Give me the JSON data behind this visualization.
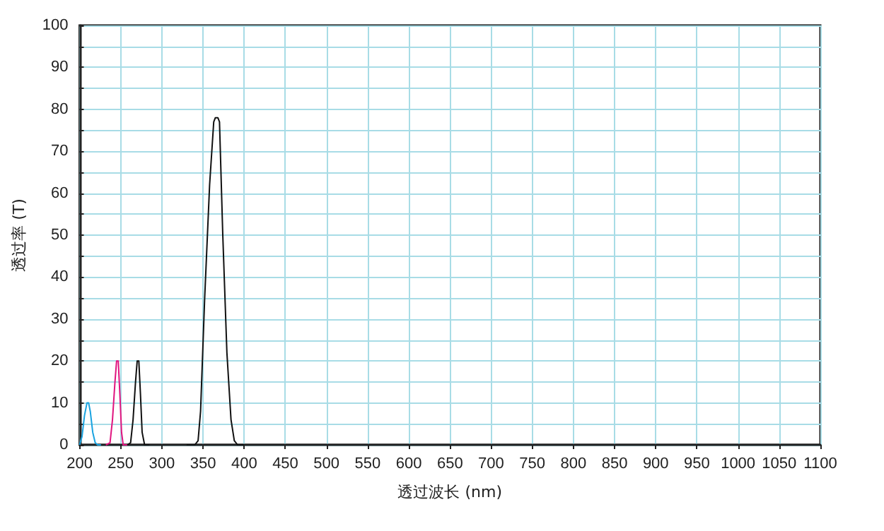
{
  "chart_data": {
    "type": "line",
    "xlabel": "透过波长 (nm)",
    "ylabel": "透过率 (T)",
    "xlim": [
      200,
      1100
    ],
    "xticks": [
      200,
      250,
      300,
      350,
      400,
      450,
      500,
      550,
      600,
      650,
      700,
      750,
      800,
      850,
      900,
      950,
      1000,
      1050,
      1100
    ],
    "ylim": [
      0,
      100
    ],
    "yticks": [
      0,
      {
        "value": 5,
        "label": null
      },
      10,
      {
        "value": 15,
        "label": null
      },
      20,
      {
        "value": 25,
        "label": null
      },
      30,
      {
        "value": 35,
        "label": null
      },
      40,
      {
        "value": 45,
        "label": null
      },
      50,
      {
        "value": 55,
        "label": null
      },
      60,
      {
        "value": 65,
        "label": null
      },
      70,
      {
        "value": 75,
        "label": null
      },
      80,
      {
        "value": 85,
        "label": null
      },
      90,
      {
        "value": 95,
        "label": null
      },
      100
    ],
    "grid": true,
    "marker": "none",
    "line_style": "solid",
    "series": [
      {
        "color": "#1aa3e0",
        "x": [
          200,
          203,
          206,
          209,
          211,
          213,
          216,
          219,
          222,
          226
        ],
        "values": [
          0,
          2,
          7,
          10,
          10,
          8,
          3,
          0.5,
          0,
          0
        ]
      },
      {
        "color": "#e0157f",
        "x": [
          232,
          237,
          240,
          243,
          245,
          247,
          249,
          251,
          253,
          258
        ],
        "values": [
          0,
          0.5,
          6,
          15,
          20,
          20,
          12,
          3,
          0,
          0
        ]
      },
      {
        "color": "#111111",
        "x": [
          258,
          262,
          265,
          268,
          270,
          272,
          274,
          276,
          279,
          285
        ],
        "values": [
          0,
          0.5,
          6,
          15,
          20,
          20,
          12,
          3,
          0,
          0
        ]
      },
      {
        "color": "#111111",
        "x": [
          330,
          340,
          344,
          347,
          352,
          358,
          363,
          365,
          368,
          370,
          374,
          379,
          384,
          388,
          392,
          400
        ],
        "values": [
          0,
          0,
          1,
          8,
          35,
          62,
          77,
          78,
          78,
          77,
          50,
          22,
          6,
          1,
          0,
          0
        ]
      }
    ]
  }
}
